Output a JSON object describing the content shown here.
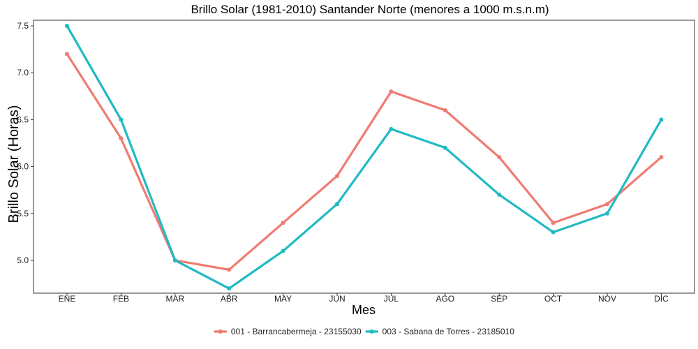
{
  "chart_data": {
    "type": "line",
    "title": "Brillo Solar (1981-2010) Santander Norte (menores a 1000 m.s.n.m)",
    "xlabel": "Mes",
    "ylabel": "Brillo Solar (Horas)",
    "categories": [
      "ENE",
      "FEB",
      "MAR",
      "ABR",
      "MAY",
      "JUN",
      "JUL",
      "AGO",
      "SEP",
      "OCT",
      "NOV",
      "DIC"
    ],
    "yticks": [
      5.0,
      5.5,
      6.0,
      6.5,
      7.0,
      7.5
    ],
    "ylim": [
      4.65,
      7.56
    ],
    "grid": false,
    "legend_position": "bottom",
    "series": [
      {
        "name": "001 - Barrancabermeja - 23155030",
        "color": "#F07B72",
        "values": [
          7.2,
          6.3,
          5.0,
          4.9,
          5.4,
          5.9,
          6.8,
          6.6,
          6.1,
          5.4,
          5.6,
          6.1
        ]
      },
      {
        "name": "003 - Sabana de Torres - 23185010",
        "color": "#20BAC3",
        "values": [
          7.5,
          6.5,
          5.0,
          4.7,
          5.1,
          5.6,
          6.4,
          6.2,
          5.7,
          5.3,
          5.5,
          6.5
        ]
      }
    ]
  }
}
